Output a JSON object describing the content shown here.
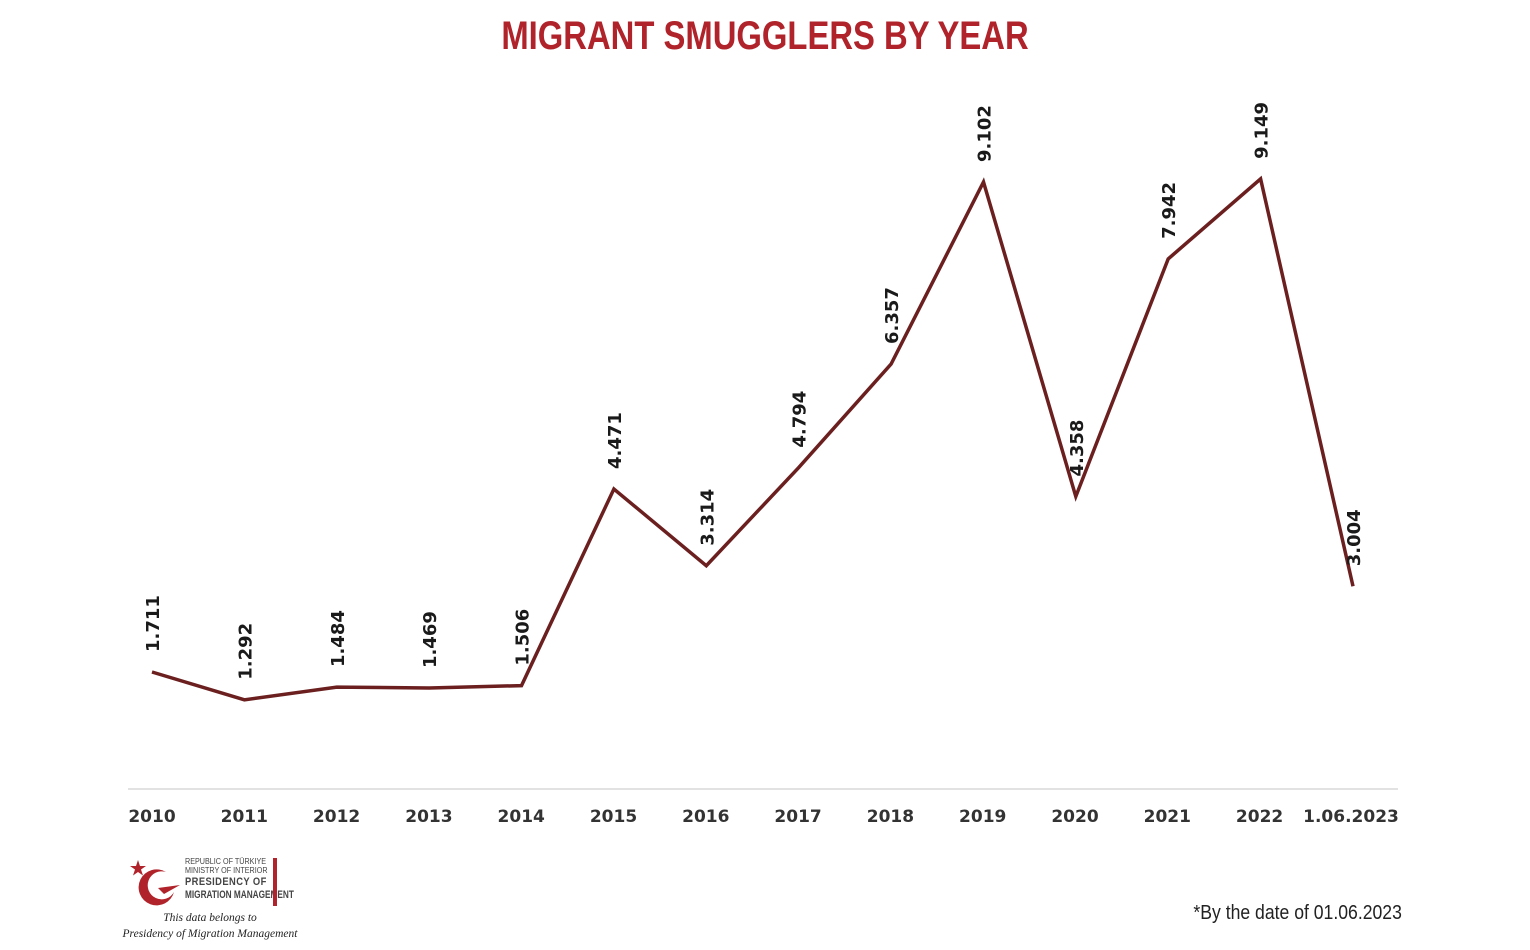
{
  "chart_data": {
    "type": "line",
    "title": "MIGRANT SMUGGLERS BY YEAR",
    "categories": [
      "2010",
      "2011",
      "2012",
      "2013",
      "2014",
      "2015",
      "2016",
      "2017",
      "2018",
      "2019",
      "2020",
      "2021",
      "2022",
      "1.06.2023"
    ],
    "series": [
      {
        "values": [
          1711,
          1292,
          1484,
          1469,
          1506,
          4471,
          3314,
          4794,
          6357,
          9102,
          4358,
          7942,
          9149,
          3004
        ],
        "labels": [
          "1.711",
          "1.292",
          "1.484",
          "1.469",
          "1.506",
          "4.471",
          "3.314",
          "4.794",
          "6.357",
          "9.102",
          "4.358",
          "7.942",
          "9.149",
          "3.004"
        ]
      }
    ],
    "xlabel": "",
    "ylabel": "",
    "y_axis_shown": false,
    "grid": false,
    "legend": "none",
    "data_labels": "rotated vertical above points"
  },
  "colors": {
    "title": "#b0232a",
    "line": "#6b1f1f",
    "axis": "#d9d9d9",
    "logo_red": "#b0232a"
  },
  "logo": {
    "icon": "crescent-star-emblem",
    "line1": "REPUBLIC OF TÜRKIYE",
    "line2": "MINISTRY OF INTERIOR",
    "line3": "PRESIDENCY OF",
    "line4": "MIGRATION MANAGEMENT"
  },
  "source_note": {
    "line1": "This data belongs to",
    "line2": "Presidency of Migration Management"
  },
  "footnote": "*By the date of 01.06.2023"
}
